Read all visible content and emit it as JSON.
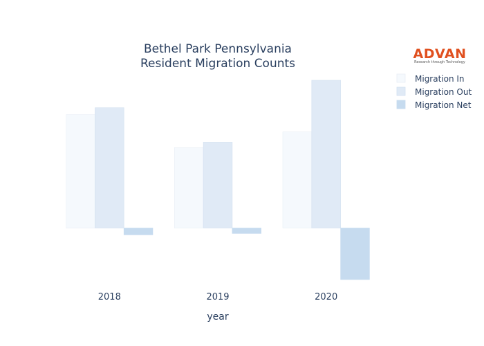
{
  "chart_data": {
    "type": "bar",
    "title": "Bethel Park Pennsylvania",
    "subtitle": "Resident Migration Counts",
    "xlabel": "year",
    "ylabel": "",
    "categories": [
      "2018",
      "2019",
      "2020"
    ],
    "series": [
      {
        "name": "Migration In",
        "values": [
          165,
          117,
          140
        ],
        "color": "#f5f9fd",
        "stroke": "#e8eef6"
      },
      {
        "name": "Migration Out",
        "values": [
          175,
          125,
          215
        ],
        "color": "#e0eaf6",
        "stroke": "#d3e0f0"
      },
      {
        "name": "Migration Net",
        "values": [
          -10,
          -8,
          -75
        ],
        "color": "#c6dbef",
        "stroke": "#c6dbef"
      }
    ],
    "ylim": [
      -75,
      215
    ],
    "grid": false,
    "legend_position": "top-right"
  },
  "logo": {
    "name": "ADVAN",
    "tagline": "Research through Technology"
  }
}
